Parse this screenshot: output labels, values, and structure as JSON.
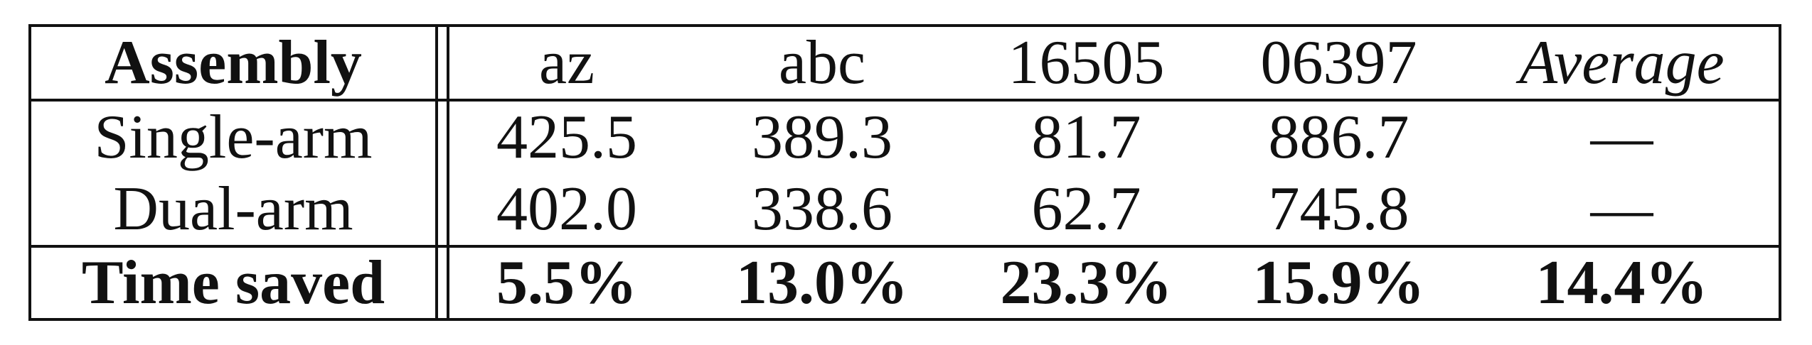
{
  "table": {
    "header": {
      "row_label": "Assembly",
      "columns": [
        "az",
        "abc",
        "16505",
        "06397",
        "Average"
      ]
    },
    "rows": [
      {
        "label": "Single-arm",
        "values": [
          "425.5",
          "389.3",
          "81.7",
          "886.7",
          "—"
        ]
      },
      {
        "label": "Dual-arm",
        "values": [
          "402.0",
          "338.6",
          "62.7",
          "745.8",
          "—"
        ]
      }
    ],
    "summary": {
      "label": "Time saved",
      "values": [
        "5.5%",
        "13.0%",
        "23.3%",
        "15.9%",
        "14.4%"
      ]
    }
  }
}
